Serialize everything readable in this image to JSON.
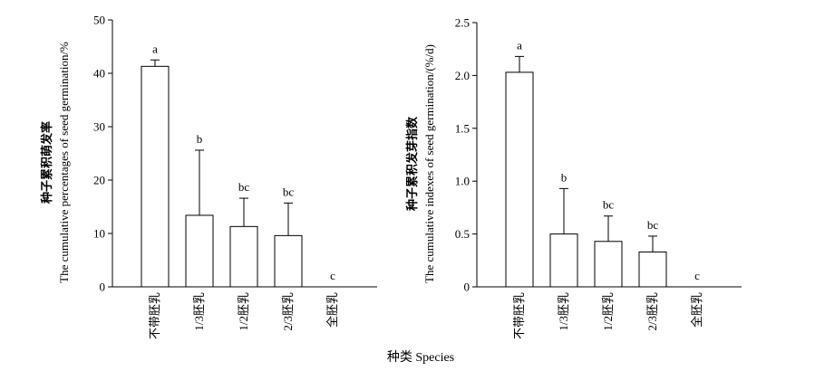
{
  "figure": {
    "shared_xlabel": "种类 Species"
  },
  "chart_data": [
    {
      "type": "bar",
      "categories": [
        "不带胚乳",
        "1/3胚乳",
        "1/2胚乳",
        "2/3胚乳",
        "全胚乳"
      ],
      "values": [
        41.3,
        13.4,
        11.3,
        9.6,
        0
      ],
      "error_upper": [
        42.5,
        25.6,
        16.6,
        15.7,
        0
      ],
      "significance": [
        "a",
        "b",
        "bc",
        "bc",
        "c"
      ],
      "ylabel_cn": "种子累积萌发率",
      "ylabel_en": "The cumulative percentages of seed germination/%",
      "ylim": [
        0,
        50
      ],
      "yticks": [
        0,
        10,
        20,
        30,
        40,
        50
      ],
      "ytick_labels": [
        "0",
        "10",
        "20",
        "30",
        "40",
        "50"
      ],
      "grid": false,
      "legend": "none"
    },
    {
      "type": "bar",
      "categories": [
        "不带胚乳",
        "1/3胚乳",
        "1/2胚乳",
        "2/3胚乳",
        "全胚乳"
      ],
      "values": [
        2.03,
        0.5,
        0.43,
        0.33,
        0
      ],
      "error_upper": [
        2.18,
        0.93,
        0.67,
        0.48,
        0
      ],
      "significance": [
        "a",
        "b",
        "bc",
        "bc",
        "c"
      ],
      "ylabel_cn": "种子累积发芽指数",
      "ylabel_en": "The cumulative indexes of seed germination/(%/d)",
      "ylim": [
        0,
        2.5
      ],
      "yticks": [
        0,
        0.5,
        1.0,
        1.5,
        2.0,
        2.5
      ],
      "ytick_labels": [
        "0",
        "0.5",
        "1.0",
        "1.5",
        "2.0",
        "2.5"
      ],
      "grid": false,
      "legend": "none"
    }
  ]
}
